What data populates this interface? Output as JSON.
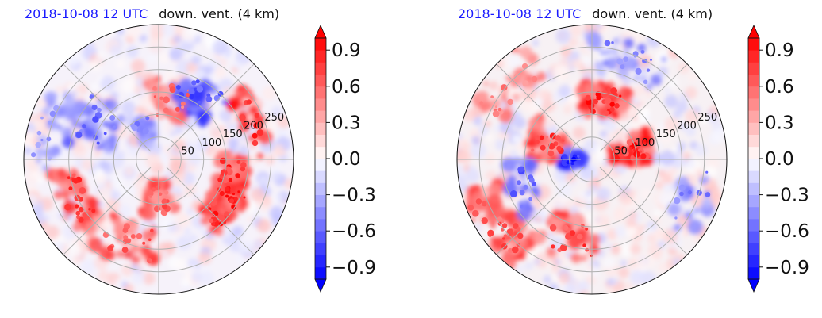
{
  "colors": {
    "positive": "#ff0000",
    "negative": "#0000ff",
    "neutral": "#ffffff",
    "title_time": "#1a1aff",
    "grid": "#b0b0b0"
  },
  "chart_data": [
    {
      "type": "polar-contourf",
      "title_left": "2018-10-08 12 UTC",
      "title_right": "down. vent. (4 km)",
      "radial_ticks": [
        "50",
        "100",
        "150",
        "200",
        "250"
      ],
      "radial_tick_values": [
        50,
        100,
        150,
        200,
        250
      ],
      "r_max": 300,
      "angular_grid_deg": [
        0,
        45,
        90,
        135,
        180,
        225,
        270,
        315
      ],
      "colorbar": {
        "min": -1.0,
        "max": 1.0,
        "levels": 20,
        "extend": "both",
        "cmap": "bwr",
        "ticks": [
          0.9,
          0.6,
          0.3,
          0.0,
          -0.3,
          -0.6,
          -0.9
        ],
        "tick_labels": [
          "0.9",
          "0.6",
          "0.3",
          "0.0",
          "−0.3",
          "−0.6",
          "−0.9"
        ]
      }
    },
    {
      "type": "polar-contourf",
      "title_left": "2018-10-08 12 UTC",
      "title_right": "down. vent. (4 km)",
      "radial_ticks": [
        "50",
        "100",
        "150",
        "200",
        "250"
      ],
      "radial_tick_values": [
        50,
        100,
        150,
        200,
        250
      ],
      "r_max": 300,
      "angular_grid_deg": [
        0,
        45,
        90,
        135,
        180,
        225,
        270,
        315
      ],
      "colorbar": {
        "min": -1.0,
        "max": 1.0,
        "levels": 20,
        "extend": "both",
        "cmap": "bwr",
        "ticks": [
          0.9,
          0.6,
          0.3,
          0.0,
          -0.3,
          -0.6,
          -0.9
        ],
        "tick_labels": [
          "0.9",
          "0.6",
          "0.3",
          "0.0",
          "−0.3",
          "−0.6",
          "−0.9"
        ]
      }
    }
  ]
}
